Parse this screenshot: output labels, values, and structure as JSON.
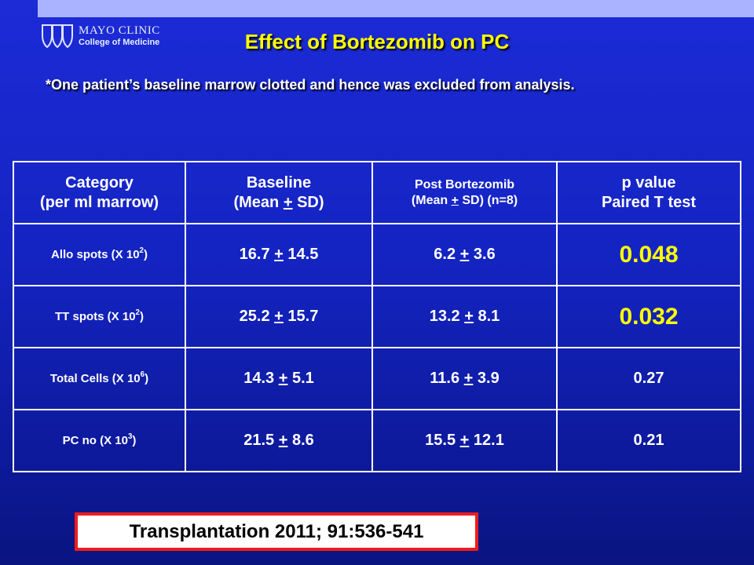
{
  "logo": {
    "line1": "MAYO CLINIC",
    "line2": "College of Medicine"
  },
  "title": "Effect of Bortezomib on PC",
  "note": "*One patient’s baseline marrow clotted and hence was excluded from analysis.",
  "table": {
    "headers": [
      {
        "line1": "Category",
        "line2": "(per ml marrow)"
      },
      {
        "line1": "Baseline",
        "line2_pre": "(Mean ",
        "line2_pm": "+",
        "line2_post": " SD)"
      },
      {
        "line1": "Post Bortezomib",
        "line2_pre": "(Mean ",
        "line2_pm": "+",
        "line2_post": " SD) (n=8)"
      },
      {
        "line1": "p value",
        "line2": "Paired T test"
      }
    ],
    "rows": [
      {
        "cat": "Allo spots (X 10",
        "exp": "2",
        "cat_end": ")",
        "base_mean": "16.7",
        "base_sd": "14.5",
        "post_mean": "6.2",
        "post_sd": "3.6",
        "p": "0.048"
      },
      {
        "cat": "TT spots (X 10",
        "exp": "2",
        "cat_end": ")",
        "base_mean": "25.2",
        "base_sd": "15.7",
        "post_mean": "13.2",
        "post_sd": "8.1",
        "p": "0.032"
      },
      {
        "cat": "Total Cells (X 10",
        "exp": "6",
        "cat_end": ")",
        "base_mean": "14.3",
        "base_sd": "5.1",
        "post_mean": "11.6",
        "post_sd": "3.9",
        "p": "0.27"
      },
      {
        "cat": "PC no (X 10",
        "exp": "3",
        "cat_end": ")",
        "base_mean": "21.5",
        "base_sd": "8.6",
        "post_mean": "15.5",
        "post_sd": "12.1",
        "p": "0.21"
      }
    ],
    "pm_symbol": "+"
  },
  "citation": "Transplantation 2011; 91:536-541",
  "colors": {
    "title": "#ffff00",
    "significant": "#ffff00",
    "citation_border": "#ee1c1c",
    "background": "#1424c2"
  }
}
